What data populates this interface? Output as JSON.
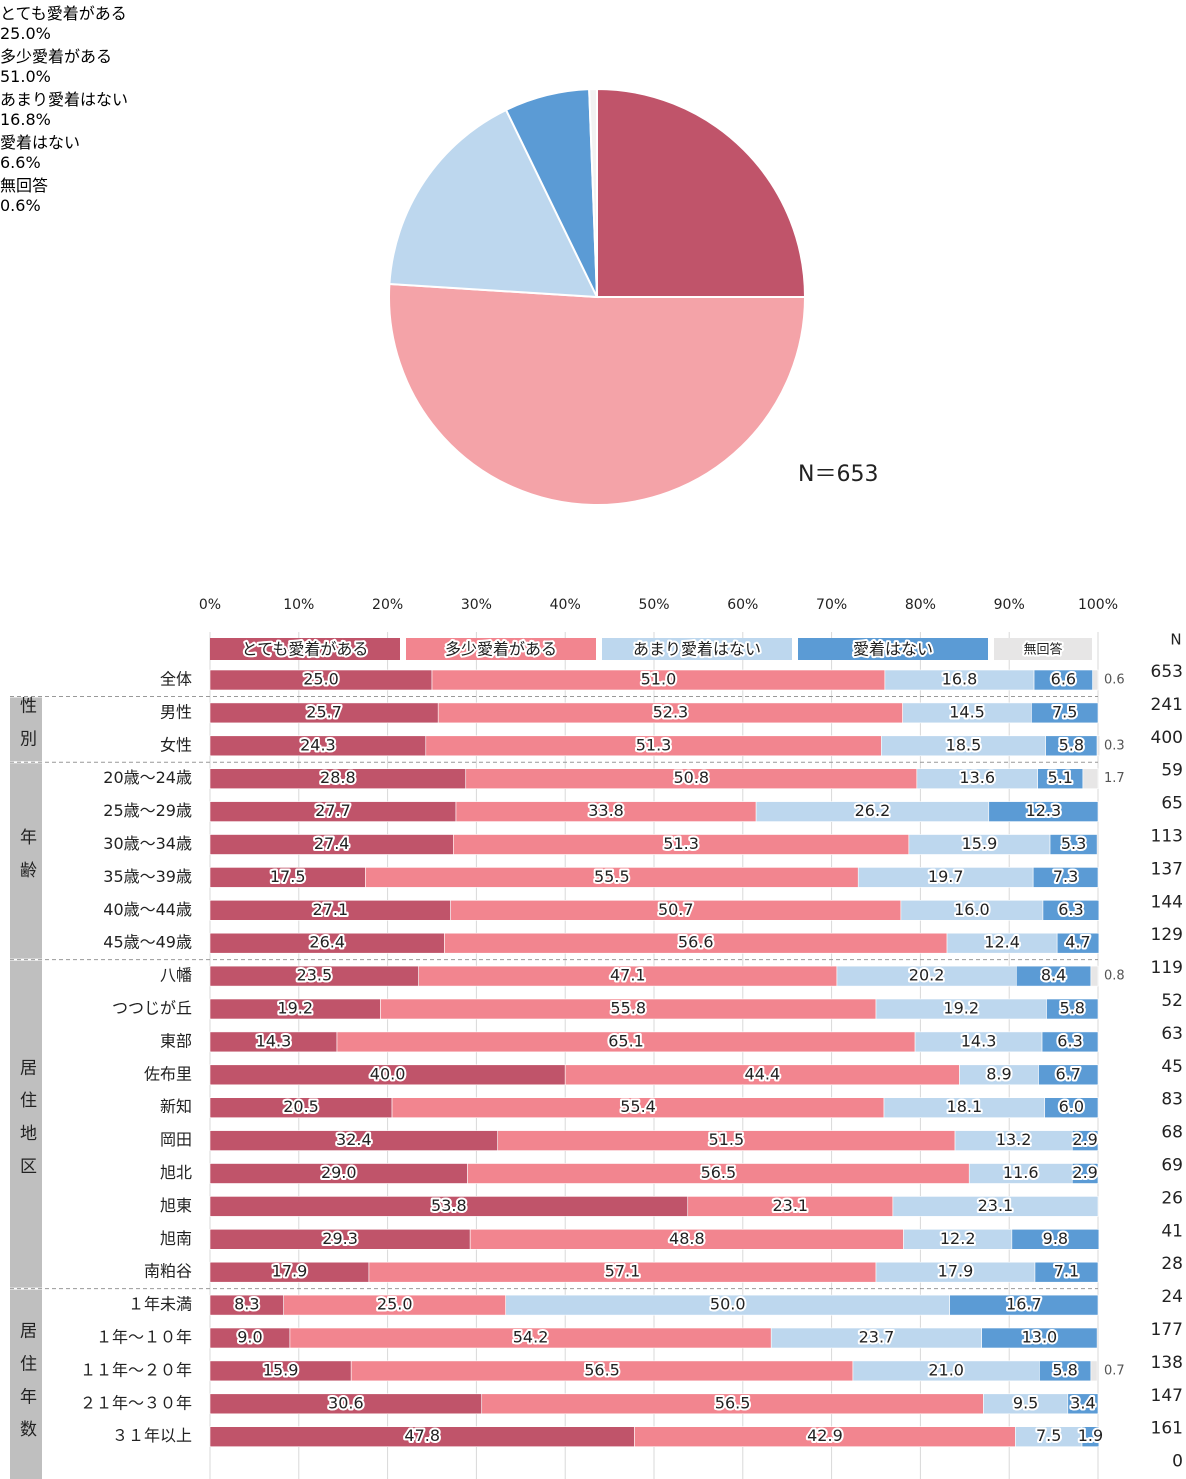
{
  "chart_data": [
    {
      "type": "pie",
      "categories": [
        "とても愛着がある",
        "多少愛着がある",
        "あまり愛着はない",
        "愛着はない",
        "無回答"
      ],
      "values": [
        25.0,
        51.0,
        16.8,
        6.6,
        0.6
      ],
      "value_labels": [
        "25.0%",
        "51.0%",
        "16.8%",
        "6.6%",
        "0.6%"
      ],
      "colors": [
        "#c0546a",
        "#f4a3a8",
        "#bdd7ee",
        "#5b9bd5",
        "#f2f2f2"
      ],
      "annotation": "N＝653"
    },
    {
      "type": "stacked_bar_horizontal",
      "n_header": "N",
      "categories": [
        "全体",
        "男性",
        "女性",
        "20歳～24歳",
        "25歳～29歳",
        "30歳～34歳",
        "35歳～39歳",
        "40歳～44歳",
        "45歳～49歳",
        "八幡",
        "つつじが丘",
        "東部",
        "佐布里",
        "新知",
        "岡田",
        "旭北",
        "旭東",
        "旭南",
        "南粕谷",
        "１年未満",
        "１年～１０年",
        "１１年～２０年",
        "２１年～３０年",
        "３１年以上",
        null
      ],
      "n": [
        653,
        241,
        400,
        59,
        65,
        113,
        137,
        144,
        129,
        119,
        52,
        63,
        45,
        83,
        68,
        69,
        26,
        41,
        28,
        24,
        177,
        138,
        147,
        161,
        0
      ],
      "groups": [
        {
          "label": "性別",
          "first": 1,
          "last": 2
        },
        {
          "label": "年齢",
          "first": 3,
          "last": 8
        },
        {
          "label": "居住地区",
          "first": 9,
          "last": 18
        },
        {
          "label": "居住年数",
          "first": 19,
          "last": 24
        }
      ],
      "xlim": [
        0,
        100
      ],
      "xticks": [
        {
          "value": 0,
          "label": "0%"
        },
        {
          "value": 10,
          "label": "10%"
        },
        {
          "value": 20,
          "label": "20%"
        },
        {
          "value": 30,
          "label": "30%"
        },
        {
          "value": 40,
          "label": "40%"
        },
        {
          "value": 50,
          "label": "50%"
        },
        {
          "value": 60,
          "label": "60%"
        },
        {
          "value": 70,
          "label": "70%"
        },
        {
          "value": 80,
          "label": "80%"
        },
        {
          "value": 90,
          "label": "90%"
        },
        {
          "value": 100,
          "label": "100%"
        }
      ],
      "grid": true,
      "series": [
        {
          "name": "とても愛着がある",
          "color": "#c0546a",
          "values": [
            25.0,
            25.7,
            24.3,
            28.8,
            27.7,
            27.4,
            17.5,
            27.1,
            26.4,
            23.5,
            19.2,
            14.3,
            40.0,
            20.5,
            32.4,
            29.0,
            53.8,
            29.3,
            17.9,
            8.3,
            9.0,
            15.9,
            30.6,
            47.8,
            null
          ],
          "value_labels": [
            "25.0",
            "25.7",
            "24.3",
            "28.8",
            "27.7",
            "27.4",
            "17.5",
            "27.1",
            "26.4",
            "23.5",
            "19.2",
            "14.3",
            "40.0",
            "20.5",
            "32.4",
            "29.0",
            "53.8",
            "29.3",
            "17.9",
            "8.3",
            "9.0",
            "15.9",
            "30.6",
            "47.8",
            null
          ]
        },
        {
          "name": "多少愛着がある",
          "color": "#f2858f",
          "values": [
            51.0,
            52.3,
            51.3,
            50.8,
            33.8,
            51.3,
            55.5,
            50.7,
            56.6,
            47.1,
            55.8,
            65.1,
            44.4,
            55.4,
            51.5,
            56.5,
            23.1,
            48.8,
            57.1,
            25.0,
            54.2,
            56.5,
            56.5,
            42.9,
            null
          ],
          "value_labels": [
            "51.0",
            "52.3",
            "51.3",
            "50.8",
            "33.8",
            "51.3",
            "55.5",
            "50.7",
            "56.6",
            "47.1",
            "55.8",
            "65.1",
            "44.4",
            "55.4",
            "51.5",
            "56.5",
            "23.1",
            "48.8",
            "57.1",
            "25.0",
            "54.2",
            "56.5",
            "56.5",
            "42.9",
            null
          ]
        },
        {
          "name": "あまり愛着はない",
          "color": "#bdd7ee",
          "values": [
            16.8,
            14.5,
            18.5,
            13.6,
            26.2,
            15.9,
            19.7,
            16.0,
            12.4,
            20.2,
            19.2,
            14.3,
            8.9,
            18.1,
            13.2,
            11.6,
            23.1,
            12.2,
            17.9,
            50.0,
            23.7,
            21.0,
            9.5,
            7.5,
            null
          ],
          "value_labels": [
            "16.8",
            "14.5",
            "18.5",
            "13.6",
            "26.2",
            "15.9",
            "19.7",
            "16.0",
            "12.4",
            "20.2",
            "19.2",
            "14.3",
            "8.9",
            "18.1",
            "13.2",
            "11.6",
            "23.1",
            "12.2",
            "17.9",
            "50.0",
            "23.7",
            "21.0",
            "9.5",
            "7.5",
            null
          ]
        },
        {
          "name": "愛着はない",
          "color": "#5b9bd5",
          "values": [
            6.6,
            7.5,
            5.8,
            5.1,
            12.3,
            5.3,
            7.3,
            6.3,
            4.7,
            8.4,
            5.8,
            6.3,
            6.7,
            6.0,
            2.9,
            2.9,
            null,
            9.8,
            7.1,
            16.7,
            13.0,
            5.8,
            3.4,
            1.9,
            null
          ],
          "value_labels": [
            "6.6",
            "7.5",
            "5.8",
            "5.1",
            "12.3",
            "5.3",
            "7.3",
            "6.3",
            "4.7",
            "8.4",
            "5.8",
            "6.3",
            "6.7",
            "6.0",
            "2.9",
            "2.9",
            null,
            "9.8",
            "7.1",
            "16.7",
            "13.0",
            "5.8",
            "3.4",
            "1.9",
            null
          ]
        },
        {
          "name": "無回答",
          "color": "#e7e6e6",
          "values": [
            0.6,
            null,
            0.3,
            1.7,
            null,
            null,
            null,
            null,
            null,
            0.8,
            null,
            null,
            null,
            null,
            null,
            null,
            null,
            null,
            null,
            null,
            null,
            0.7,
            null,
            null,
            null
          ],
          "value_labels": [
            "0.6",
            null,
            "0.3",
            "1.7",
            null,
            null,
            null,
            null,
            null,
            "0.8",
            null,
            null,
            null,
            null,
            null,
            null,
            null,
            null,
            null,
            null,
            null,
            "0.7",
            null,
            null,
            null
          ]
        }
      ]
    }
  ]
}
